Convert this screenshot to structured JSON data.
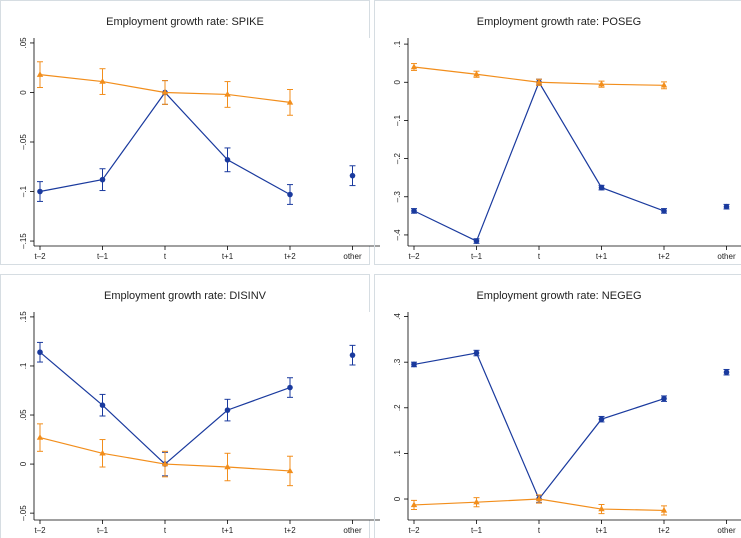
{
  "chart_data": [
    {
      "type": "line",
      "title": "Employment growth rate: SPIKE",
      "categories": [
        "t–2",
        "t–1",
        "t",
        "t+1",
        "t+2",
        "other"
      ],
      "ylim": [
        -0.155,
        0.055
      ],
      "yticks": [
        {
          "value": 0.05,
          "label": ".05"
        },
        0,
        {
          "value": -0.05,
          "label": "–.05"
        },
        {
          "value": -0.1,
          "label": "–.1"
        },
        {
          "value": -0.15,
          "label": "–.15"
        }
      ],
      "series": [
        {
          "color": "#1a3a9e",
          "marker": "circle",
          "line": true,
          "values": [
            -0.1,
            -0.088,
            0,
            -0.068,
            -0.103,
            null
          ],
          "errors": [
            0.01,
            0.011,
            0.012,
            0.012,
            0.01,
            null
          ]
        },
        {
          "color": "#1a3a9e",
          "marker": "circle",
          "line": false,
          "values": [
            null,
            null,
            null,
            null,
            null,
            -0.084
          ],
          "errors": [
            null,
            null,
            null,
            null,
            null,
            0.01
          ]
        },
        {
          "color": "#f28e1c",
          "marker": "triangle",
          "line": true,
          "values": [
            0.018,
            0.011,
            0,
            -0.002,
            -0.01,
            null
          ],
          "errors": [
            0.013,
            0.013,
            0.012,
            0.013,
            0.013,
            null
          ]
        }
      ]
    },
    {
      "type": "line",
      "title": "Employment growth rate: POSEG",
      "categories": [
        "t–2",
        "t–1",
        "t",
        "t+1",
        "t+2",
        "other"
      ],
      "ylim": [
        -0.429,
        0.116
      ],
      "yticks": [
        {
          "value": 0.1,
          "label": ".1"
        },
        0,
        {
          "value": -0.1,
          "label": "–.1"
        },
        {
          "value": -0.2,
          "label": "–.2"
        },
        {
          "value": -0.3,
          "label": "–.3"
        },
        {
          "value": -0.4,
          "label": "–.4"
        }
      ],
      "series": [
        {
          "color": "#1a3a9e",
          "marker": "circle",
          "line": true,
          "values": [
            -0.337,
            -0.416,
            0,
            -0.276,
            -0.337,
            null
          ],
          "errors": [
            0.006,
            0.006,
            0.008,
            0.006,
            0.006,
            null
          ]
        },
        {
          "color": "#1a3a9e",
          "marker": "circle",
          "line": false,
          "values": [
            null,
            null,
            null,
            null,
            null,
            -0.326
          ],
          "errors": [
            null,
            null,
            null,
            null,
            null,
            0.006
          ]
        },
        {
          "color": "#f28e1c",
          "marker": "triangle",
          "line": true,
          "values": [
            0.04,
            0.021,
            0,
            -0.005,
            -0.008,
            null
          ],
          "errors": [
            0.009,
            0.008,
            0.008,
            0.008,
            0.009,
            null
          ]
        }
      ]
    },
    {
      "type": "line",
      "title": "Employment growth rate: DISINV",
      "categories": [
        "t–2",
        "t–1",
        "t",
        "t+1",
        "t+2",
        "other"
      ],
      "ylim": [
        -0.057,
        0.155
      ],
      "yticks": [
        {
          "value": 0.15,
          "label": ".15"
        },
        {
          "value": 0.1,
          "label": ".1"
        },
        {
          "value": 0.05,
          "label": ".05"
        },
        0,
        {
          "value": -0.05,
          "label": "–.05"
        }
      ],
      "series": [
        {
          "color": "#1a3a9e",
          "marker": "circle",
          "line": true,
          "values": [
            0.114,
            0.06,
            0,
            0.055,
            0.078,
            null
          ],
          "errors": [
            0.01,
            0.011,
            0.012,
            0.011,
            0.01,
            null
          ]
        },
        {
          "color": "#1a3a9e",
          "marker": "circle",
          "line": false,
          "values": [
            null,
            null,
            null,
            null,
            null,
            0.111
          ],
          "errors": [
            null,
            null,
            null,
            null,
            null,
            0.01
          ]
        },
        {
          "color": "#f28e1c",
          "marker": "triangle",
          "line": true,
          "values": [
            0.027,
            0.011,
            0,
            -0.003,
            -0.007,
            null
          ],
          "errors": [
            0.014,
            0.014,
            0.013,
            0.014,
            0.015,
            null
          ]
        }
      ]
    },
    {
      "type": "line",
      "title": "Employment growth rate: NEGEG",
      "categories": [
        "t–2",
        "t–1",
        "t",
        "t+1",
        "t+2",
        "other"
      ],
      "ylim": [
        -0.046,
        0.41
      ],
      "yticks": [
        {
          "value": 0.4,
          "label": ".4"
        },
        {
          "value": 0.3,
          "label": ".3"
        },
        {
          "value": 0.2,
          "label": ".2"
        },
        {
          "value": 0.1,
          "label": ".1"
        },
        0
      ],
      "series": [
        {
          "color": "#1a3a9e",
          "marker": "circle",
          "line": true,
          "values": [
            0.295,
            0.32,
            0,
            0.175,
            0.22,
            null
          ],
          "errors": [
            0.005,
            0.006,
            0.008,
            0.006,
            0.006,
            null
          ]
        },
        {
          "color": "#1a3a9e",
          "marker": "circle",
          "line": false,
          "values": [
            null,
            null,
            null,
            null,
            null,
            0.278
          ],
          "errors": [
            null,
            null,
            null,
            null,
            null,
            0.006
          ]
        },
        {
          "color": "#f28e1c",
          "marker": "triangle",
          "line": true,
          "values": [
            -0.013,
            -0.007,
            0,
            -0.022,
            -0.025,
            null
          ],
          "errors": [
            0.01,
            0.01,
            0.009,
            0.01,
            0.01,
            null
          ]
        }
      ]
    }
  ]
}
